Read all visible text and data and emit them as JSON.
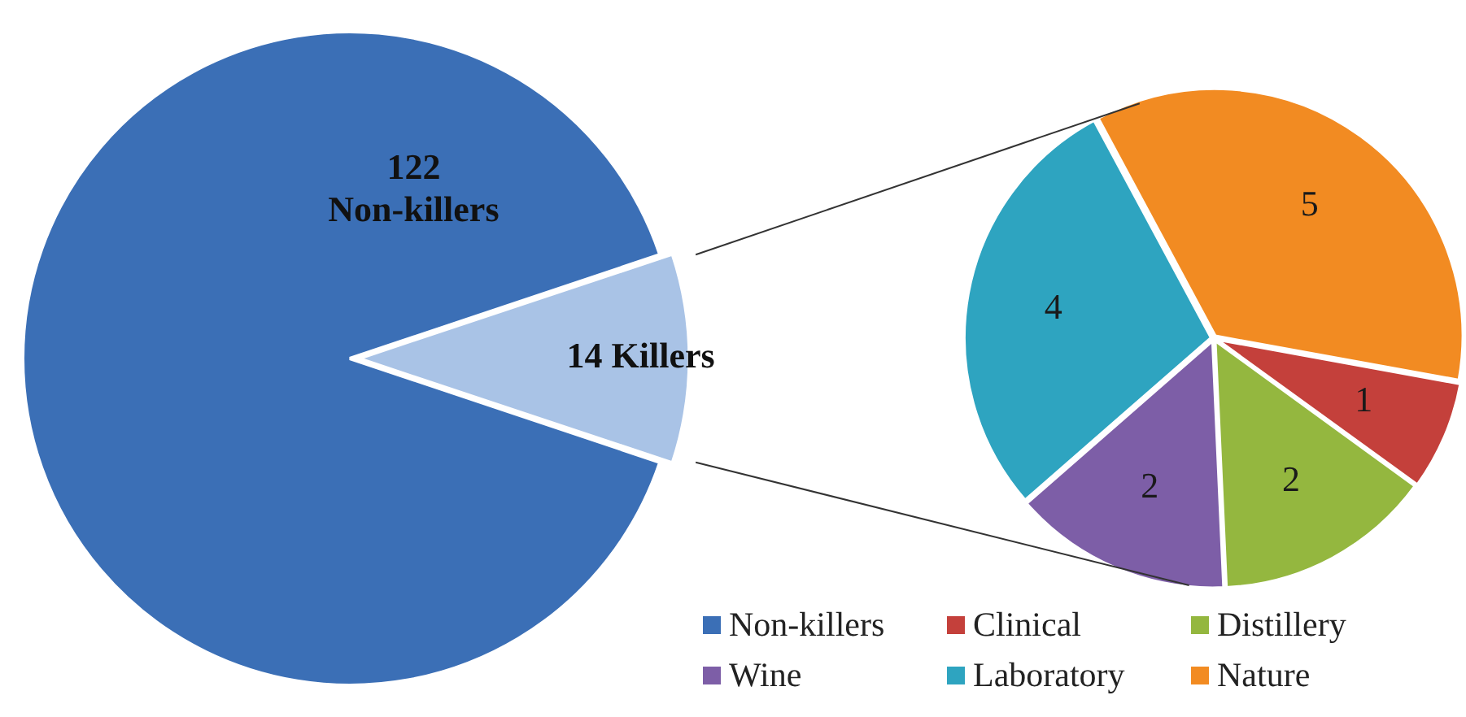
{
  "chart_data": [
    {
      "type": "pie",
      "categories": [
        "Non-killers",
        null
      ],
      "values": [
        122,
        14
      ],
      "colors": [
        "#3b6fb6",
        "#a9c3e6"
      ],
      "value_labels": [
        "122\nNon-killers",
        "14 Killers"
      ],
      "legend": "bottom right"
    },
    {
      "type": "pie",
      "categories": [
        "Clinical",
        "Distillery",
        "Wine",
        "Laboratory",
        "Nature"
      ],
      "values": [
        1,
        2,
        2,
        4,
        5
      ],
      "colors": [
        "#c4403b",
        "#94b73f",
        "#7d5ea7",
        "#2ea4c0",
        "#f28b22"
      ],
      "data_labels": true,
      "legend": "bottom left"
    }
  ]
}
